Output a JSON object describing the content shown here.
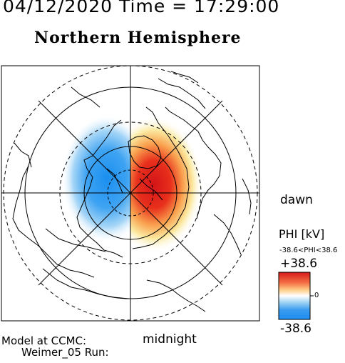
{
  "header": {
    "timestamp": "04/12/2020 Time = 17:29:00",
    "hemisphere": "Northern Hemisphere"
  },
  "labels": {
    "dawn": "dawn",
    "midnight": "midnight"
  },
  "footer": {
    "model_line1": "Model at CCMC:",
    "model_line2": "Weimer_05 Run:"
  },
  "colorbar": {
    "title": "PHI [kV]",
    "range_text": "-38.6<PHI<38.6",
    "max_label": "+38.6",
    "min_label": "-38.6",
    "zero_label": "0",
    "colors": [
      "#d7191c",
      "#fdae61",
      "#ffffbf",
      "#ffffff",
      "#abd9e9",
      "#2c7bb6",
      "#1e90ff"
    ]
  },
  "map": {
    "projection": "polar-stereographic",
    "potential_min_kV": -38.6,
    "potential_max_kV": 38.6,
    "negative_cell": "dusk / left side",
    "positive_cell": "dawn / right side"
  }
}
